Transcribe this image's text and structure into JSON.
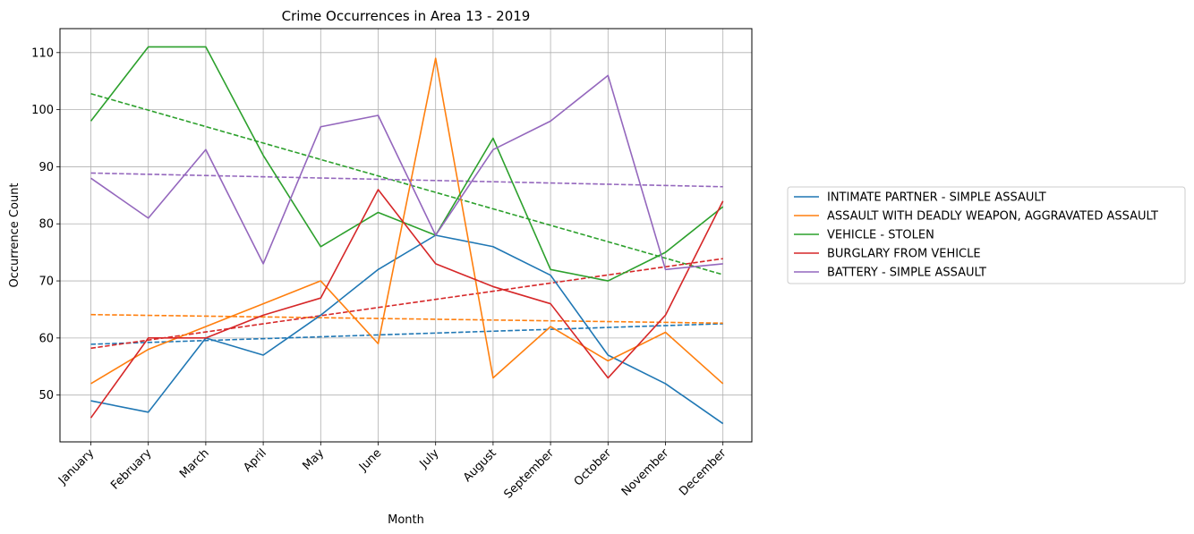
{
  "chart_data": {
    "type": "line",
    "title": "Crime Occurrences in Area 13 - 2019",
    "xlabel": "Month",
    "ylabel": "Occurrence Count",
    "categories": [
      "January",
      "February",
      "March",
      "April",
      "May",
      "June",
      "July",
      "August",
      "September",
      "October",
      "November",
      "December"
    ],
    "ylim": [
      41.8,
      114.2
    ],
    "yticks": [
      50,
      60,
      70,
      80,
      90,
      100,
      110
    ],
    "grid": true,
    "legend_position": "right",
    "series": [
      {
        "name": "INTIMATE PARTNER - SIMPLE ASSAULT",
        "color": "#1f77b4",
        "values": [
          49,
          47,
          60,
          57,
          64,
          72,
          78,
          76,
          71,
          57,
          52,
          45
        ],
        "trend": [
          58.9,
          62.5
        ]
      },
      {
        "name": "ASSAULT WITH DEADLY WEAPON, AGGRAVATED ASSAULT",
        "color": "#ff7f0e",
        "values": [
          52,
          58,
          62,
          66,
          70,
          59,
          109,
          53,
          62,
          56,
          61,
          52
        ],
        "trend": [
          64.1,
          62.6
        ]
      },
      {
        "name": "VEHICLE - STOLEN",
        "color": "#2ca02c",
        "values": [
          98,
          111,
          111,
          92,
          76,
          82,
          78,
          95,
          72,
          70,
          75,
          83
        ],
        "trend": [
          102.8,
          71.1
        ]
      },
      {
        "name": "BURGLARY FROM VEHICLE",
        "color": "#d62728",
        "values": [
          46,
          60,
          60,
          64,
          67,
          86,
          73,
          69,
          66,
          53,
          64,
          84
        ],
        "trend": [
          58.2,
          73.9
        ]
      },
      {
        "name": "BATTERY - SIMPLE ASSAULT",
        "color": "#9467bd",
        "values": [
          88,
          81,
          93,
          73,
          97,
          99,
          78,
          93,
          98,
          106,
          72,
          73
        ],
        "trend": [
          88.9,
          86.5
        ]
      }
    ]
  }
}
